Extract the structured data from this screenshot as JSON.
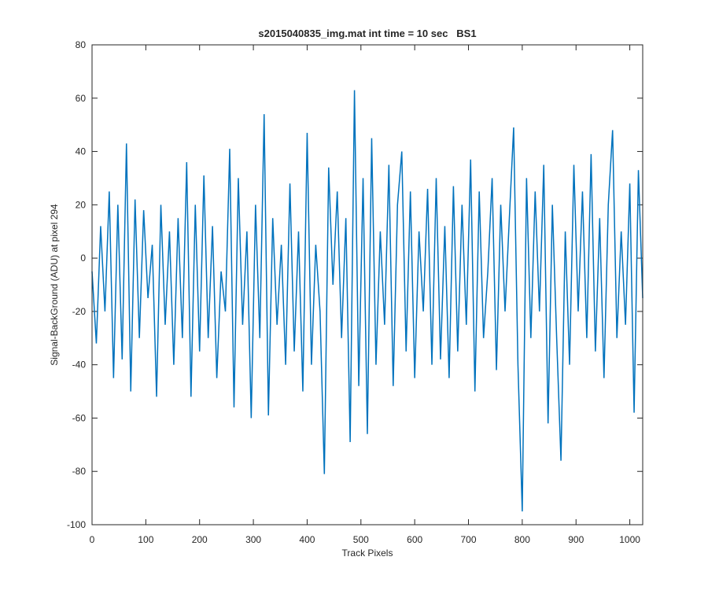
{
  "chart_data": {
    "type": "line",
    "title": "s2015040835_img.mat int time = 10 sec   BS1",
    "xlabel": "Track Pixels",
    "ylabel": "Signal-BackGround (ADU) at pixel 294",
    "color": "#0072bd",
    "xlim": [
      0,
      1024
    ],
    "ylim": [
      -100,
      80
    ],
    "xticks": [
      0,
      100,
      200,
      300,
      400,
      500,
      600,
      700,
      800,
      900,
      1000
    ],
    "yticks": [
      -100,
      -80,
      -60,
      -40,
      -20,
      0,
      20,
      40,
      60,
      80
    ],
    "grid": false,
    "x": [
      0,
      8,
      16,
      24,
      32,
      40,
      48,
      56,
      64,
      72,
      80,
      88,
      96,
      104,
      112,
      120,
      128,
      136,
      144,
      152,
      160,
      168,
      176,
      184,
      192,
      200,
      208,
      216,
      224,
      232,
      240,
      248,
      256,
      264,
      272,
      280,
      288,
      296,
      304,
      312,
      320,
      328,
      336,
      344,
      352,
      360,
      368,
      376,
      384,
      392,
      400,
      408,
      416,
      424,
      432,
      440,
      448,
      456,
      464,
      472,
      480,
      488,
      496,
      504,
      512,
      520,
      528,
      536,
      544,
      552,
      560,
      568,
      576,
      584,
      592,
      600,
      608,
      616,
      624,
      632,
      640,
      648,
      656,
      664,
      672,
      680,
      688,
      696,
      704,
      712,
      720,
      728,
      736,
      744,
      752,
      760,
      768,
      776,
      784,
      792,
      800,
      808,
      816,
      824,
      832,
      840,
      848,
      856,
      864,
      872,
      880,
      888,
      896,
      904,
      912,
      920,
      928,
      936,
      944,
      952,
      960,
      968,
      976,
      984,
      992,
      1000,
      1008,
      1016,
      1024
    ],
    "values": [
      -5,
      -32,
      12,
      -20,
      25,
      -45,
      20,
      -38,
      43,
      -50,
      22,
      -30,
      18,
      -15,
      5,
      -52,
      20,
      -25,
      10,
      -40,
      15,
      -30,
      36,
      -52,
      20,
      -35,
      31,
      -30,
      12,
      -45,
      -5,
      -20,
      41,
      -56,
      30,
      -25,
      10,
      -60,
      20,
      -30,
      54,
      -59,
      15,
      -25,
      5,
      -40,
      28,
      -35,
      10,
      -50,
      47,
      -40,
      5,
      -20,
      -81,
      34,
      -10,
      25,
      -30,
      15,
      -69,
      63,
      -48,
      30,
      -66,
      45,
      -40,
      10,
      -25,
      35,
      -48,
      20,
      40,
      -35,
      25,
      -45,
      10,
      -20,
      26,
      -40,
      30,
      -38,
      12,
      -45,
      27,
      -35,
      20,
      -25,
      37,
      -50,
      25,
      -30,
      -5,
      30,
      -42,
      20,
      -20,
      15,
      49,
      -40,
      -95,
      30,
      -30,
      25,
      -20,
      35,
      -62,
      20,
      -30,
      -76,
      10,
      -40,
      35,
      -20,
      25,
      -30,
      39,
      -35,
      15,
      -45,
      20,
      48,
      -30,
      10,
      -25,
      28,
      -58,
      33,
      -15
    ]
  }
}
